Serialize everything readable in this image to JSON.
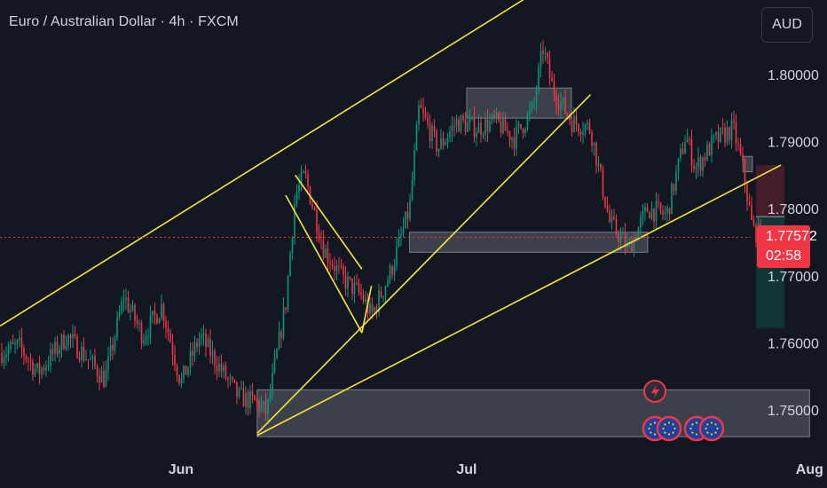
{
  "header": {
    "symbol_title": "Euro / Australian Dollar · 4h · FXCM"
  },
  "currency_button": {
    "label": "AUD"
  },
  "last_price": {
    "value": "1.77572",
    "countdown": "02:58"
  },
  "colors": {
    "background": "#131722",
    "up": "#089981",
    "down": "#f23645",
    "trendline": "#f5e53d",
    "zone": "#9598a1",
    "text": "#d1d4dc"
  },
  "chart_data": {
    "type": "candlestick",
    "instrument": "EURAUD",
    "timeframe": "4h",
    "source": "FXCM",
    "y_axis": {
      "ticks": [
        "1.80000",
        "1.79000",
        "1.78000",
        "1.77000",
        "1.76000",
        "1.75000"
      ],
      "tick_values": [
        1.8,
        1.79,
        1.78,
        1.77,
        1.76,
        1.75
      ],
      "range": [
        1.7435,
        1.8115
      ]
    },
    "x_axis": {
      "labels": [
        "Jun",
        "Jul",
        "Aug"
      ]
    },
    "grid": false,
    "last_price": 1.77572,
    "path_points": [
      [
        "2024-05-13",
        1.7585
      ],
      [
        "2024-05-15",
        1.7595
      ],
      [
        "2024-05-17",
        1.7555
      ],
      [
        "2024-05-20",
        1.761
      ],
      [
        "2024-05-22",
        1.758
      ],
      [
        "2024-05-24",
        1.7545
      ],
      [
        "2024-05-26",
        1.767
      ],
      [
        "2024-05-28",
        1.761
      ],
      [
        "2024-05-30",
        1.7655
      ],
      [
        "2024-06-01",
        1.754
      ],
      [
        "2024-06-03",
        1.761
      ],
      [
        "2024-06-05",
        1.7565
      ],
      [
        "2024-06-07",
        1.752
      ],
      [
        "2024-06-09",
        1.751
      ],
      [
        "2024-06-10",
        1.7495
      ],
      [
        "2024-06-12",
        1.766
      ],
      [
        "2024-06-13",
        1.782
      ],
      [
        "2024-06-14",
        1.785
      ],
      [
        "2024-06-16",
        1.774
      ],
      [
        "2024-06-18",
        1.7695
      ],
      [
        "2024-06-20",
        1.767
      ],
      [
        "2024-06-21",
        1.764
      ],
      [
        "2024-06-23",
        1.7705
      ],
      [
        "2024-06-25",
        1.78
      ],
      [
        "2024-06-26",
        1.795
      ],
      [
        "2024-06-28",
        1.789
      ],
      [
        "2024-06-30",
        1.793
      ],
      [
        "2024-07-02",
        1.792
      ],
      [
        "2024-07-04",
        1.793
      ],
      [
        "2024-07-06",
        1.7905
      ],
      [
        "2024-07-08",
        1.795
      ],
      [
        "2024-07-09",
        1.804
      ],
      [
        "2024-07-10",
        1.798
      ],
      [
        "2024-07-12",
        1.793
      ],
      [
        "2024-07-14",
        1.792
      ],
      [
        "2024-07-16",
        1.778
      ],
      [
        "2024-07-18",
        1.774
      ],
      [
        "2024-07-20",
        1.78
      ],
      [
        "2024-07-22",
        1.779
      ],
      [
        "2024-07-24",
        1.791
      ],
      [
        "2024-07-25",
        1.786
      ],
      [
        "2024-07-27",
        1.79
      ],
      [
        "2024-07-29",
        1.792
      ],
      [
        "2024-07-30",
        1.786
      ],
      [
        "2024-07-31",
        1.777
      ],
      [
        "2024-08-01",
        1.77572
      ]
    ],
    "zones": [
      {
        "from": "2024-07-01",
        "to": "2024-07-12",
        "high": 1.798,
        "low": 1.7935
      },
      {
        "from": "2024-06-25",
        "to": "2024-07-20",
        "high": 1.7765,
        "low": 1.7735
      },
      {
        "from": "2024-06-09",
        "to": "2024-08-06",
        "high": 1.753,
        "low": 1.746
      },
      {
        "from": "2024-07-30",
        "to": "2024-07-31",
        "high": 1.7878,
        "low": 1.7855
      }
    ],
    "trendlines": [
      [
        [
          "2024-05-13",
          1.7625
        ],
        [
          "2024-07-07",
          1.8112
        ]
      ],
      [
        [
          "2024-06-09",
          1.7465
        ],
        [
          "2024-07-14",
          1.797
        ]
      ],
      [
        [
          "2024-06-09",
          1.7462
        ],
        [
          "2024-08-03",
          1.7865
        ]
      ],
      [
        [
          "2024-06-13",
          1.785
        ],
        [
          "2024-06-20",
          1.771
        ]
      ],
      [
        [
          "2024-06-12",
          1.782
        ],
        [
          "2024-06-20",
          1.7615
        ]
      ],
      [
        [
          "2024-06-20",
          1.7615
        ],
        [
          "2024-06-21",
          1.7685
        ]
      ]
    ],
    "position": {
      "type": "short",
      "entry": 1.7788,
      "stop": 1.7865,
      "target": 1.7622,
      "from": "2024-07-31",
      "to": "2024-08-03"
    },
    "event_markers": [
      {
        "date": "2024-07-31",
        "kind": "flash"
      },
      {
        "date": "2024-07-31",
        "kind": "eur-flag"
      },
      {
        "date": "2024-08-01",
        "kind": "eur-flag"
      },
      {
        "date": "2024-08-02",
        "kind": "eur-flag"
      },
      {
        "date": "2024-08-03",
        "kind": "eur-flag"
      }
    ]
  }
}
